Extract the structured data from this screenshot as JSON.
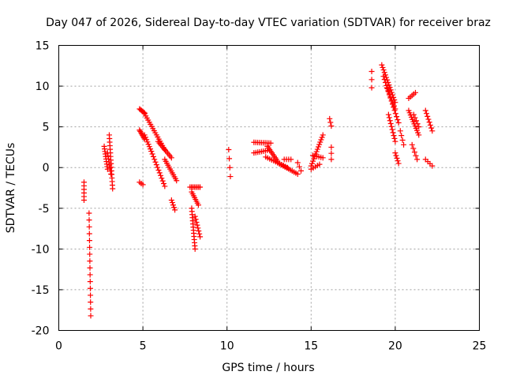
{
  "chart_data": {
    "type": "scatter",
    "title": "Day 047 of 2026, Sidereal Day-to-day VTEC variation (SDTVAR) for receiver braz",
    "xlabel": "GPS time / hours",
    "ylabel": "SDTVAR / TECUs",
    "xlim": [
      0,
      25
    ],
    "ylim": [
      -20,
      15
    ],
    "xticks": [
      0,
      5,
      10,
      15,
      20,
      25
    ],
    "yticks": [
      -20,
      -15,
      -10,
      -5,
      0,
      5,
      10,
      15
    ],
    "xtick_labels": [
      "0",
      "5",
      "10",
      "15",
      "20",
      "25"
    ],
    "ytick_labels": [
      "-20",
      "-15",
      "-10",
      "-5",
      "0",
      "5",
      "10",
      "15"
    ],
    "grid": true,
    "marker": "+",
    "color": "#ff0000",
    "series": [
      {
        "name": "SDTVAR",
        "tracks": [
          {
            "from": [
              1.5,
              -1.8
            ],
            "to": [
              1.5,
              -4.0
            ],
            "n": 6
          },
          {
            "from": [
              1.8,
              -5.6
            ],
            "to": [
              1.9,
              -18.2
            ],
            "n": 16
          },
          {
            "from": [
              2.7,
              2.6
            ],
            "to": [
              2.9,
              -0.2
            ],
            "n": 10
          },
          {
            "from": [
              3.0,
              4.0
            ],
            "to": [
              3.2,
              -2.6
            ],
            "n": 16
          },
          {
            "from": [
              2.9,
              1.8
            ],
            "to": [
              3.1,
              -0.8
            ],
            "n": 8
          },
          {
            "from": [
              4.8,
              7.2
            ],
            "to": [
              5.1,
              6.7
            ],
            "n": 6
          },
          {
            "from": [
              4.8,
              4.6
            ],
            "to": [
              5.1,
              3.5
            ],
            "n": 8
          },
          {
            "from": [
              5.1,
              6.6
            ],
            "to": [
              6.3,
              2.2
            ],
            "n": 18
          },
          {
            "from": [
              5.1,
              4.0
            ],
            "to": [
              5.5,
              2.0
            ],
            "n": 8
          },
          {
            "from": [
              5.5,
              2.0
            ],
            "to": [
              6.3,
              -2.3
            ],
            "n": 14
          },
          {
            "from": [
              5.9,
              3.2
            ],
            "to": [
              6.7,
              1.2
            ],
            "n": 12
          },
          {
            "from": [
              6.3,
              1.0
            ],
            "to": [
              7.0,
              -1.6
            ],
            "n": 12
          },
          {
            "from": [
              6.7,
              -4.0
            ],
            "to": [
              6.9,
              -5.2
            ],
            "n": 5
          },
          {
            "from": [
              4.8,
              -1.8
            ],
            "to": [
              5.0,
              -2.1
            ],
            "n": 3
          },
          {
            "from": [
              7.8,
              -2.4
            ],
            "to": [
              8.4,
              -2.4
            ],
            "n": 8
          },
          {
            "from": [
              7.9,
              -3.0
            ],
            "to": [
              8.3,
              -4.6
            ],
            "n": 8
          },
          {
            "from": [
              7.9,
              -5.0
            ],
            "to": [
              8.1,
              -10.0
            ],
            "n": 14
          },
          {
            "from": [
              8.1,
              -6.0
            ],
            "to": [
              8.4,
              -8.5
            ],
            "n": 8
          },
          {
            "from": [
              10.1,
              2.2
            ],
            "to": [
              10.2,
              -1.1
            ],
            "n": 4
          },
          {
            "from": [
              11.6,
              3.1
            ],
            "to": [
              12.6,
              3.0
            ],
            "n": 10
          },
          {
            "from": [
              11.6,
              1.8
            ],
            "to": [
              12.4,
              2.1
            ],
            "n": 8
          },
          {
            "from": [
              12.4,
              2.6
            ],
            "to": [
              13.0,
              0.8
            ],
            "n": 10
          },
          {
            "from": [
              12.3,
              1.3
            ],
            "to": [
              13.6,
              0.0
            ],
            "n": 12
          },
          {
            "from": [
              13.0,
              0.6
            ],
            "to": [
              14.2,
              -0.8
            ],
            "n": 12
          },
          {
            "from": [
              13.4,
              1.0
            ],
            "to": [
              13.8,
              1.0
            ],
            "n": 4
          },
          {
            "from": [
              14.2,
              0.6
            ],
            "to": [
              14.4,
              -0.4
            ],
            "n": 3
          },
          {
            "from": [
              15.0,
              0.2
            ],
            "to": [
              15.7,
              4.0
            ],
            "n": 14
          },
          {
            "from": [
              15.1,
              1.5
            ],
            "to": [
              15.7,
              1.2
            ],
            "n": 6
          },
          {
            "from": [
              15.0,
              -0.2
            ],
            "to": [
              15.5,
              0.4
            ],
            "n": 5
          },
          {
            "from": [
              16.1,
              6.0
            ],
            "to": [
              16.2,
              5.1
            ],
            "n": 3
          },
          {
            "from": [
              16.2,
              2.5
            ],
            "to": [
              16.2,
              1.0
            ],
            "n": 3
          },
          {
            "from": [
              18.6,
              11.8
            ],
            "to": [
              18.6,
              9.8
            ],
            "n": 3
          },
          {
            "from": [
              19.2,
              12.6
            ],
            "to": [
              20.0,
              8.0
            ],
            "n": 16
          },
          {
            "from": [
              19.3,
              11.2
            ],
            "to": [
              20.2,
              5.5
            ],
            "n": 16
          },
          {
            "from": [
              19.5,
              9.8
            ],
            "to": [
              20.0,
              7.2
            ],
            "n": 8
          },
          {
            "from": [
              19.6,
              6.5
            ],
            "to": [
              20.0,
              3.2
            ],
            "n": 10
          },
          {
            "from": [
              20.0,
              1.8
            ],
            "to": [
              20.2,
              0.5
            ],
            "n": 5
          },
          {
            "from": [
              20.3,
              4.5
            ],
            "to": [
              20.5,
              2.8
            ],
            "n": 4
          },
          {
            "from": [
              20.8,
              8.5
            ],
            "to": [
              21.2,
              9.2
            ],
            "n": 5
          },
          {
            "from": [
              20.8,
              7.0
            ],
            "to": [
              21.4,
              4.0
            ],
            "n": 12
          },
          {
            "from": [
              21.0,
              2.8
            ],
            "to": [
              21.3,
              1.0
            ],
            "n": 5
          },
          {
            "from": [
              21.1,
              6.5
            ],
            "to": [
              21.4,
              5.0
            ],
            "n": 5
          },
          {
            "from": [
              21.8,
              7.0
            ],
            "to": [
              22.2,
              4.5
            ],
            "n": 8
          },
          {
            "from": [
              21.8,
              1.0
            ],
            "to": [
              22.2,
              0.2
            ],
            "n": 4
          }
        ]
      }
    ]
  }
}
